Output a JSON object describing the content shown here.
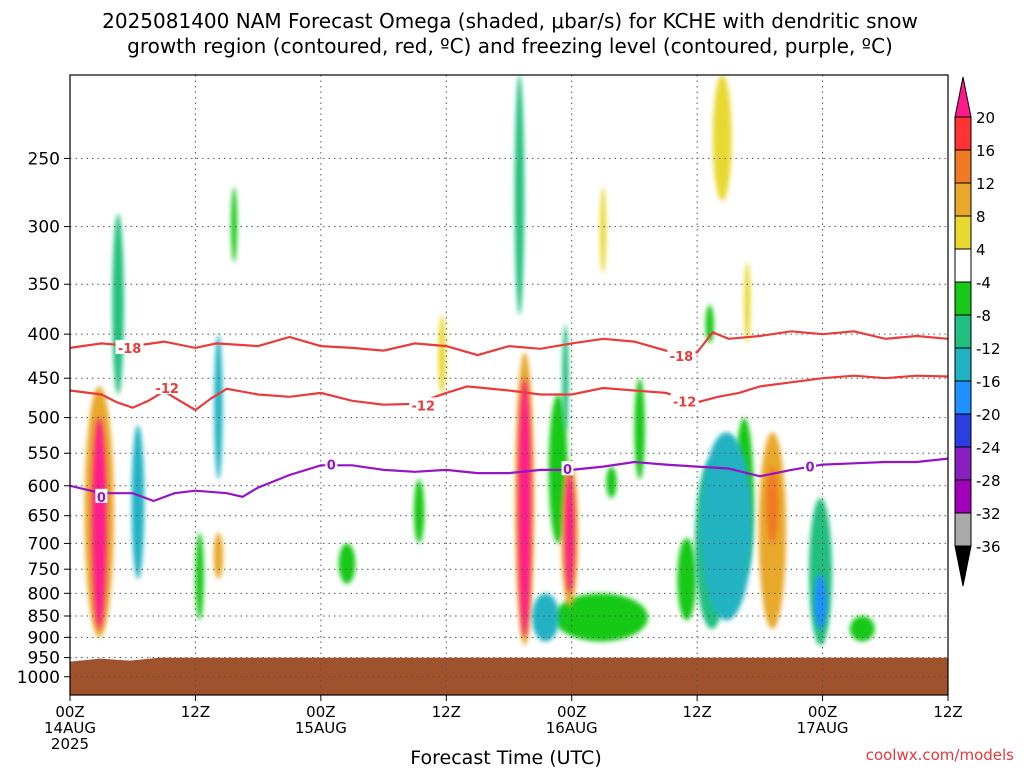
{
  "chart_data": {
    "type": "heatmap",
    "title_line1": "2025081400 NAM Forecast Omega (shaded, μbar/s) for KCHE with dendritic snow",
    "title_line2": "growth region (contoured, red, ºC) and freezing level (contoured, purple, ºC)",
    "xlabel": "Forecast Time (UTC)",
    "ylabel": "",
    "credit": "coolwx.com/models",
    "x_axis": {
      "unit": "hours",
      "range": [
        0,
        84
      ],
      "ticks": [
        {
          "hour": 0,
          "label": "00Z",
          "date": "14AUG",
          "year": "2025"
        },
        {
          "hour": 12,
          "label": "12Z"
        },
        {
          "hour": 24,
          "label": "00Z",
          "date": "15AUG"
        },
        {
          "hour": 36,
          "label": "12Z"
        },
        {
          "hour": 48,
          "label": "00Z",
          "date": "16AUG"
        },
        {
          "hour": 60,
          "label": "12Z"
        },
        {
          "hour": 72,
          "label": "00Z",
          "date": "17AUG"
        },
        {
          "hour": 84,
          "label": "12Z"
        }
      ]
    },
    "y_axis": {
      "unit": "hPa",
      "scale": "log",
      "top": 200,
      "bottom": 1050,
      "ticks": [
        250,
        300,
        350,
        400,
        450,
        500,
        550,
        600,
        650,
        700,
        750,
        800,
        850,
        900,
        950,
        1000
      ]
    },
    "ground_level_hPa": 950,
    "ground_color": "#a0522d",
    "colorbar": {
      "labels": [
        "20",
        "16",
        "12",
        "8",
        "4",
        "-4",
        "-8",
        "-12",
        "-16",
        "-20",
        "-24",
        "-28",
        "-32",
        "-36"
      ],
      "colors": [
        "#ff1a8c",
        "#ff3333",
        "#f07a24",
        "#e8a82c",
        "#e8d830",
        "#ffffff",
        "#19c919",
        "#21bf80",
        "#20b2c2",
        "#1e90ff",
        "#2a3fe0",
        "#8a1fc0",
        "#a000b8",
        "#aaaaaa",
        "#000000"
      ],
      "top_arrow": "#ff1a8c",
      "bottom_arrow": "#000000"
    },
    "omega_blobs": [
      {
        "t": 2.8,
        "p": 740,
        "dt": 0.7,
        "dp_top": 500,
        "dp_bot": 880,
        "v": 20
      },
      {
        "t": 2.8,
        "p": 700,
        "dt": 1.4,
        "dp_top": 460,
        "dp_bot": 900,
        "v": 10
      },
      {
        "t": 4.6,
        "p": 350,
        "dt": 0.55,
        "dp_top": 290,
        "dp_bot": 470,
        "v": -10
      },
      {
        "t": 6.5,
        "p": 580,
        "dt": 0.6,
        "dp_top": 510,
        "dp_bot": 770,
        "v": -12
      },
      {
        "t": 12.4,
        "p": 760,
        "dt": 0.4,
        "dp_top": 680,
        "dp_bot": 860,
        "v": -6
      },
      {
        "t": 14.2,
        "p": 490,
        "dt": 0.4,
        "dp_top": 400,
        "dp_bot": 590,
        "v": -12
      },
      {
        "t": 14.2,
        "p": 720,
        "dt": 0.45,
        "dp_top": 680,
        "dp_bot": 770,
        "v": 8
      },
      {
        "t": 15.7,
        "p": 290,
        "dt": 0.25,
        "dp_top": 270,
        "dp_bot": 330,
        "v": -6
      },
      {
        "t": 26.5,
        "p": 740,
        "dt": 0.8,
        "dp_top": 700,
        "dp_bot": 780,
        "v": -6
      },
      {
        "t": 33.4,
        "p": 640,
        "dt": 0.5,
        "dp_top": 590,
        "dp_bot": 700,
        "v": -6
      },
      {
        "t": 35.6,
        "p": 440,
        "dt": 0.35,
        "dp_top": 380,
        "dp_bot": 470,
        "v": 6
      },
      {
        "t": 43.5,
        "p": 700,
        "dt": 0.6,
        "dp_top": 450,
        "dp_bot": 900,
        "v": 20
      },
      {
        "t": 43.5,
        "p": 680,
        "dt": 0.9,
        "dp_top": 420,
        "dp_bot": 920,
        "v": 8
      },
      {
        "t": 43.0,
        "p": 290,
        "dt": 0.45,
        "dp_top": 200,
        "dp_bot": 380,
        "v": -8
      },
      {
        "t": 45.5,
        "p": 860,
        "dt": 1.3,
        "dp_top": 800,
        "dp_bot": 910,
        "v": -12
      },
      {
        "t": 46.7,
        "p": 540,
        "dt": 0.9,
        "dp_top": 470,
        "dp_bot": 700,
        "v": -6
      },
      {
        "t": 47.8,
        "p": 680,
        "dt": 0.45,
        "dp_top": 580,
        "dp_bot": 800,
        "v": 20
      },
      {
        "t": 47.8,
        "p": 660,
        "dt": 0.8,
        "dp_top": 560,
        "dp_bot": 830,
        "v": 8
      },
      {
        "t": 47.4,
        "p": 460,
        "dt": 0.3,
        "dp_top": 390,
        "dp_bot": 520,
        "v": -8
      },
      {
        "t": 50.8,
        "p": 860,
        "dt": 4.5,
        "dp_top": 800,
        "dp_bot": 910,
        "v": -6
      },
      {
        "t": 51.8,
        "p": 590,
        "dt": 0.5,
        "dp_top": 570,
        "dp_bot": 620,
        "v": -6
      },
      {
        "t": 51.0,
        "p": 300,
        "dt": 0.25,
        "dp_top": 270,
        "dp_bot": 340,
        "v": 6
      },
      {
        "t": 54.5,
        "p": 500,
        "dt": 0.5,
        "dp_top": 450,
        "dp_bot": 590,
        "v": -6
      },
      {
        "t": 59.0,
        "p": 760,
        "dt": 0.9,
        "dp_top": 690,
        "dp_bot": 860,
        "v": -6
      },
      {
        "t": 61.4,
        "p": 660,
        "dt": 1.6,
        "dp_top": 560,
        "dp_bot": 880,
        "v": -8
      },
      {
        "t": 62.8,
        "p": 700,
        "dt": 2.5,
        "dp_top": 520,
        "dp_bot": 860,
        "v": -12
      },
      {
        "t": 64.5,
        "p": 600,
        "dt": 0.9,
        "dp_top": 500,
        "dp_bot": 760,
        "v": -6
      },
      {
        "t": 61.2,
        "p": 400,
        "dt": 0.4,
        "dp_top": 370,
        "dp_bot": 410,
        "v": -6
      },
      {
        "t": 62.4,
        "p": 220,
        "dt": 0.9,
        "dp_top": 200,
        "dp_bot": 280,
        "v": 6
      },
      {
        "t": 64.8,
        "p": 370,
        "dt": 0.3,
        "dp_top": 330,
        "dp_bot": 410,
        "v": 6
      },
      {
        "t": 67.2,
        "p": 680,
        "dt": 1.3,
        "dp_top": 520,
        "dp_bot": 880,
        "v": 8
      },
      {
        "t": 67.2,
        "p": 630,
        "dt": 0.6,
        "dp_top": 570,
        "dp_bot": 700,
        "v": 12
      },
      {
        "t": 71.8,
        "p": 780,
        "dt": 1.1,
        "dp_top": 620,
        "dp_bot": 920,
        "v": -8
      },
      {
        "t": 71.8,
        "p": 810,
        "dt": 0.6,
        "dp_top": 760,
        "dp_bot": 880,
        "v": -16
      },
      {
        "t": 75.8,
        "p": 880,
        "dt": 1.2,
        "dp_top": 850,
        "dp_bot": 910,
        "v": -6
      }
    ],
    "contours": [
      {
        "name": "-18",
        "color": "#e83c3c",
        "label": "-18",
        "label_points": [
          {
            "t": 5.7,
            "p": 415
          },
          {
            "t": 58.5,
            "p": 424
          }
        ],
        "points": [
          [
            0,
            415
          ],
          [
            3,
            410
          ],
          [
            6,
            413
          ],
          [
            9,
            408
          ],
          [
            12,
            415
          ],
          [
            14,
            410
          ],
          [
            18,
            413
          ],
          [
            21,
            403
          ],
          [
            24,
            413
          ],
          [
            27,
            415
          ],
          [
            30,
            418
          ],
          [
            33,
            410
          ],
          [
            36,
            413
          ],
          [
            39,
            423
          ],
          [
            42,
            413
          ],
          [
            45,
            416
          ],
          [
            48,
            410
          ],
          [
            51,
            405
          ],
          [
            54,
            408
          ],
          [
            57,
            418
          ],
          [
            60,
            420
          ],
          [
            61.5,
            398
          ],
          [
            63,
            405
          ],
          [
            66,
            402
          ],
          [
            69,
            397
          ],
          [
            72,
            400
          ],
          [
            75,
            397
          ],
          [
            78,
            405
          ],
          [
            81,
            402
          ],
          [
            84,
            405
          ]
        ]
      },
      {
        "name": "-12",
        "color": "#e83c3c",
        "label": "-12",
        "label_points": [
          {
            "t": 9.3,
            "p": 462
          },
          {
            "t": 33.8,
            "p": 484
          },
          {
            "t": 58.8,
            "p": 479
          }
        ],
        "points": [
          [
            0,
            465
          ],
          [
            3,
            470
          ],
          [
            4.5,
            480
          ],
          [
            6,
            487
          ],
          [
            7.5,
            478
          ],
          [
            9,
            466
          ],
          [
            10.5,
            478
          ],
          [
            12,
            490
          ],
          [
            13.5,
            475
          ],
          [
            15,
            463
          ],
          [
            18,
            470
          ],
          [
            21,
            473
          ],
          [
            24,
            468
          ],
          [
            27,
            478
          ],
          [
            30,
            483
          ],
          [
            33,
            482
          ],
          [
            36,
            468
          ],
          [
            38,
            460
          ],
          [
            42,
            465
          ],
          [
            45,
            470
          ],
          [
            48,
            470
          ],
          [
            51,
            462
          ],
          [
            54,
            465
          ],
          [
            57,
            468
          ],
          [
            60,
            480
          ],
          [
            62,
            473
          ],
          [
            64,
            468
          ],
          [
            66,
            460
          ],
          [
            69,
            455
          ],
          [
            72,
            450
          ],
          [
            75,
            447
          ],
          [
            78,
            450
          ],
          [
            81,
            447
          ],
          [
            84,
            448
          ]
        ]
      },
      {
        "name": "0",
        "color": "#9315c4",
        "label": "0",
        "label_points": [
          {
            "t": 3.0,
            "p": 618
          },
          {
            "t": 25.0,
            "p": 567
          },
          {
            "t": 47.6,
            "p": 574
          },
          {
            "t": 70.8,
            "p": 570
          }
        ],
        "points": [
          [
            0,
            600
          ],
          [
            3,
            612
          ],
          [
            6,
            612
          ],
          [
            8,
            625
          ],
          [
            10,
            612
          ],
          [
            12,
            608
          ],
          [
            15,
            612
          ],
          [
            16.5,
            618
          ],
          [
            18,
            603
          ],
          [
            21,
            583
          ],
          [
            24,
            568
          ],
          [
            27,
            568
          ],
          [
            30,
            575
          ],
          [
            33,
            578
          ],
          [
            36,
            575
          ],
          [
            39,
            580
          ],
          [
            42,
            580
          ],
          [
            45,
            575
          ],
          [
            48,
            575
          ],
          [
            51,
            570
          ],
          [
            54,
            563
          ],
          [
            57,
            567
          ],
          [
            60,
            570
          ],
          [
            63,
            573
          ],
          [
            66,
            585
          ],
          [
            69,
            575
          ],
          [
            72,
            567
          ],
          [
            75,
            565
          ],
          [
            78,
            563
          ],
          [
            81,
            563
          ],
          [
            84,
            558
          ]
        ]
      }
    ]
  }
}
